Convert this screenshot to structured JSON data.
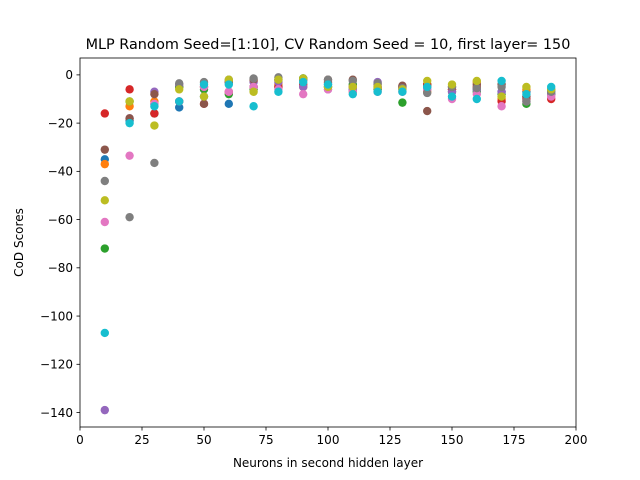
{
  "chart_data": {
    "type": "scatter",
    "title": "MLP Random Seed=[1:10], CV Random Seed = 10, first layer= 150",
    "xlabel": "Neurons in second hidden layer",
    "ylabel": "CoD Scores",
    "xlim": [
      0,
      200
    ],
    "ylim": [
      -146,
      7
    ],
    "xticks": [
      0,
      25,
      50,
      75,
      100,
      125,
      150,
      175,
      200
    ],
    "xtick_labels": [
      "0",
      "25",
      "50",
      "75",
      "100",
      "125",
      "150",
      "175",
      "200"
    ],
    "yticks": [
      -140,
      -120,
      -100,
      -80,
      -60,
      -40,
      -20,
      0
    ],
    "ytick_labels": [
      "−140",
      "−120",
      "−100",
      "−80",
      "−60",
      "−40",
      "−20",
      "0"
    ],
    "grid": false,
    "legend": "none",
    "x": [
      10,
      20,
      30,
      40,
      50,
      60,
      70,
      80,
      90,
      100,
      110,
      120,
      130,
      140,
      150,
      160,
      170,
      180,
      190
    ],
    "series": [
      {
        "color": "#1f77b4",
        "values": [
          -35,
          -19,
          -12,
          -13.5,
          -9,
          -12,
          -5,
          -2,
          -1.5,
          -4,
          -6,
          -5,
          -5,
          -5,
          -6,
          -6,
          -7,
          -7,
          -7
        ]
      },
      {
        "color": "#ff7f0e",
        "values": [
          -37,
          -13,
          -11,
          -5,
          -5,
          -3,
          -2.5,
          -4,
          -5,
          -5,
          -7,
          -6,
          -5,
          -7,
          -6,
          -3,
          -10,
          -6,
          -8
        ]
      },
      {
        "color": "#2ca02c",
        "values": [
          -72,
          -11,
          -16,
          -5,
          -6,
          -8,
          -6,
          -5,
          -1.5,
          -5,
          -4,
          -6,
          -11.5,
          -4,
          -7,
          -7,
          -8,
          -12,
          -8
        ]
      },
      {
        "color": "#d62728",
        "values": [
          -16,
          -6,
          -16,
          -11,
          -12,
          -7,
          -5,
          -5,
          -4,
          -3,
          -5,
          -5,
          -5,
          -4,
          -6,
          -5,
          -11,
          -10,
          -10
        ]
      },
      {
        "color": "#9467bd",
        "values": [
          -139,
          -18,
          -7,
          -4,
          -5,
          -3,
          -3,
          -3,
          -5,
          -6,
          -6,
          -3,
          -6,
          -6,
          -7,
          -6,
          -7,
          -9,
          -8
        ]
      },
      {
        "color": "#8c564b",
        "values": [
          -31,
          -18,
          -8,
          -11,
          -12,
          -3,
          -2,
          -2,
          -2,
          -2,
          -2,
          -4,
          -4.5,
          -15,
          -5,
          -4,
          -4,
          -9,
          -6
        ]
      },
      {
        "color": "#e377c2",
        "values": [
          -61,
          -33.5,
          -12,
          -11,
          -5,
          -7,
          -5,
          -6,
          -8,
          -6,
          -7,
          -7,
          -7,
          -6,
          -10,
          -8,
          -13,
          -11,
          -9
        ]
      },
      {
        "color": "#7f7f7f",
        "values": [
          -44,
          -59,
          -36.5,
          -3.5,
          -3,
          -2,
          -1.5,
          -1,
          -2,
          -2,
          -2.5,
          -3.5,
          -5.5,
          -7.5,
          -5,
          -5.5,
          -5,
          -11,
          -7
        ]
      },
      {
        "color": "#bcbd22",
        "values": [
          -52,
          -11,
          -21,
          -6,
          -9,
          -2,
          -7,
          -2,
          -1.5,
          -5,
          -5,
          -5,
          -6,
          -2.5,
          -4,
          -2.5,
          -9,
          -5,
          -6
        ]
      },
      {
        "color": "#17becf",
        "values": [
          -107,
          -20,
          -13,
          -11,
          -4,
          -4,
          -13,
          -7,
          -3,
          -4,
          -8,
          -7,
          -7,
          -5,
          -9,
          -10,
          -2.5,
          -8,
          -5
        ]
      }
    ]
  }
}
